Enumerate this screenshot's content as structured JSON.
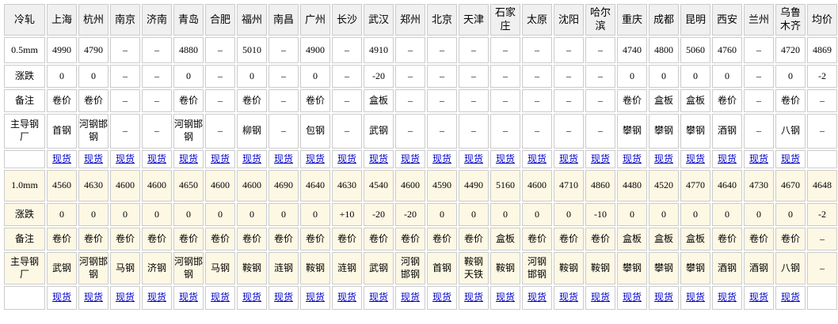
{
  "table": {
    "corner_label": "冷轧",
    "cities": [
      "上海",
      "杭州",
      "南京",
      "济南",
      "青岛",
      "合肥",
      "福州",
      "南昌",
      "广州",
      "长沙",
      "武汉",
      "郑州",
      "北京",
      "天津",
      "石家\n庄",
      "太原",
      "沈阳",
      "哈尔\n滨",
      "重庆",
      "成都",
      "昆明",
      "西安",
      "兰州",
      "乌鲁\n木齐",
      "均价"
    ],
    "row_labels": {
      "change": "涨跌",
      "note": "备注",
      "mill": "主导钢\n厂",
      "spot_link": "现货"
    },
    "colors": {
      "header_bg": "#f0f0f0",
      "section2_bg": "#fdf8e4",
      "link": "#0000cc",
      "border": "#cbcbcb"
    },
    "chart_data": {
      "type": "table",
      "note": "cold-rolled steel sheet city price table, two specs"
    },
    "sections": [
      {
        "spec": "0.5mm",
        "prices": [
          "4990",
          "4790",
          "–",
          "–",
          "4880",
          "–",
          "5010",
          "–",
          "4900",
          "–",
          "4910",
          "–",
          "–",
          "–",
          "–",
          "–",
          "–",
          "–",
          "4740",
          "4800",
          "5060",
          "4760",
          "–",
          "4720",
          "4869"
        ],
        "changes": [
          "0",
          "0",
          "–",
          "–",
          "0",
          "–",
          "0",
          "–",
          "0",
          "–",
          "-20",
          "–",
          "–",
          "–",
          "–",
          "–",
          "–",
          "–",
          "0",
          "0",
          "0",
          "0",
          "–",
          "0",
          "-2"
        ],
        "notes": [
          "卷价",
          "卷价",
          "–",
          "–",
          "卷价",
          "–",
          "卷价",
          "–",
          "卷价",
          "–",
          "盒板",
          "–",
          "–",
          "–",
          "–",
          "–",
          "–",
          "–",
          "卷价",
          "盒板",
          "盒板",
          "卷价",
          "–",
          "卷价",
          "–"
        ],
        "mills": [
          "首钢",
          "河钢邯\n钢",
          "–",
          "–",
          "河钢邯\n钢",
          "–",
          "柳钢",
          "–",
          "包钢",
          "–",
          "武钢",
          "–",
          "–",
          "–",
          "–",
          "–",
          "–",
          "–",
          "攀钢",
          "攀钢",
          "攀钢",
          "酒钢",
          "–",
          "八钢",
          "–"
        ]
      },
      {
        "spec": "1.0mm",
        "prices": [
          "4560",
          "4630",
          "4600",
          "4600",
          "4650",
          "4600",
          "4600",
          "4690",
          "4640",
          "4630",
          "4540",
          "4600",
          "4590",
          "4490",
          "5160",
          "4600",
          "4710",
          "4860",
          "4480",
          "4520",
          "4770",
          "4640",
          "4730",
          "4670",
          "4648"
        ],
        "changes": [
          "0",
          "0",
          "0",
          "0",
          "0",
          "0",
          "0",
          "0",
          "0",
          "+10",
          "-20",
          "-20",
          "0",
          "0",
          "0",
          "0",
          "0",
          "-10",
          "0",
          "0",
          "0",
          "0",
          "0",
          "0",
          "-2"
        ],
        "notes": [
          "卷价",
          "卷价",
          "卷价",
          "卷价",
          "卷价",
          "卷价",
          "卷价",
          "卷价",
          "卷价",
          "卷价",
          "卷价",
          "卷价",
          "卷价",
          "卷价",
          "盒板",
          "卷价",
          "卷价",
          "卷价",
          "盒板",
          "盒板",
          "盒板",
          "卷价",
          "卷价",
          "卷价",
          "–"
        ],
        "mills": [
          "武钢",
          "河钢邯\n钢",
          "马钢",
          "济钢",
          "河钢邯\n钢",
          "马钢",
          "鞍钢",
          "涟钢",
          "鞍钢",
          "涟钢",
          "武钢",
          "河钢\n邯钢",
          "首钢",
          "鞍钢\n天铁",
          "鞍钢",
          "河钢\n邯钢",
          "鞍钢",
          "鞍钢",
          "攀钢",
          "攀钢",
          "攀钢",
          "酒钢",
          "酒钢",
          "八钢",
          "–"
        ]
      }
    ]
  }
}
